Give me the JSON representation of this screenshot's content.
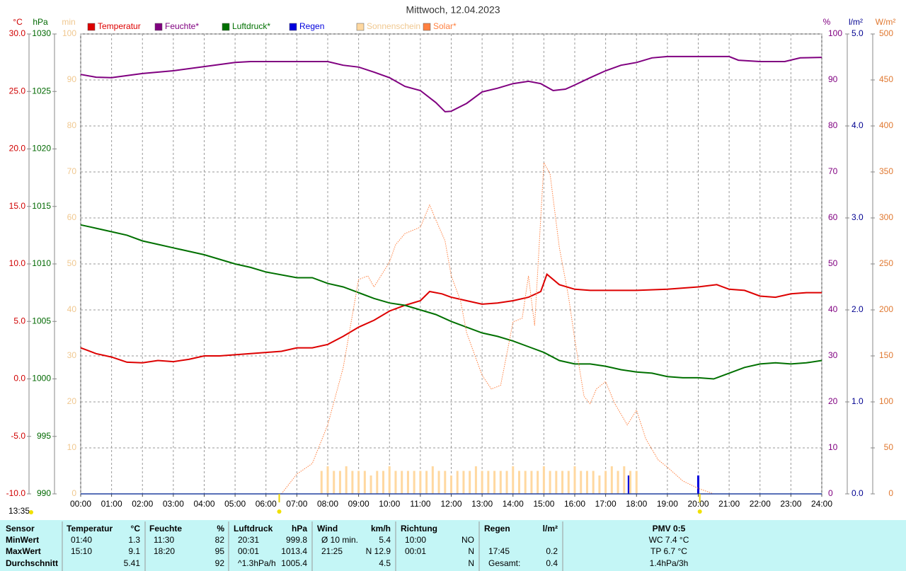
{
  "chart_data": {
    "type": "line",
    "title": "Mittwoch, 12.04.2023",
    "xlim": [
      0,
      24
    ],
    "xticks": [
      {
        "value": 0,
        "label": "00:00"
      },
      {
        "value": 1,
        "label": "01:00"
      },
      {
        "value": 2,
        "label": "02:00"
      },
      {
        "value": 3,
        "label": "03:00"
      },
      {
        "value": 4,
        "label": "04:00"
      },
      {
        "value": 5,
        "label": "05:00"
      },
      {
        "value": 6,
        "label": "06:00"
      },
      {
        "value": 7,
        "label": "07:00"
      },
      {
        "value": 8,
        "label": "08:00"
      },
      {
        "value": 9,
        "label": "09:00"
      },
      {
        "value": 10,
        "label": "10:00"
      },
      {
        "value": 11,
        "label": "11:00"
      },
      {
        "value": 12,
        "label": "12:00"
      },
      {
        "value": 13,
        "label": "13:00"
      },
      {
        "value": 14,
        "label": "14:00"
      },
      {
        "value": 15,
        "label": "15:00"
      },
      {
        "value": 16,
        "label": "16:00"
      },
      {
        "value": 17,
        "label": "17:00"
      },
      {
        "value": 18,
        "label": "18:00"
      },
      {
        "value": 19,
        "label": "19:00"
      },
      {
        "value": 20,
        "label": "20:00"
      },
      {
        "value": 21,
        "label": "21:00"
      },
      {
        "value": 22,
        "label": "22:00"
      },
      {
        "value": 23,
        "label": "23:00"
      },
      {
        "value": 24,
        "label": "24:00"
      }
    ],
    "grid": true,
    "axes": [
      {
        "unit": "°C",
        "color": "#d00000",
        "lim": [
          -10,
          30
        ],
        "ticks": [
          {
            "value": 30,
            "label": "30.0"
          },
          {
            "value": 25,
            "label": "25.0"
          },
          {
            "value": 20,
            "label": "20.0"
          },
          {
            "value": 15,
            "label": "15.0"
          },
          {
            "value": 10,
            "label": "10.0"
          },
          {
            "value": 5,
            "label": "5.0"
          },
          {
            "value": 0,
            "label": "0.0"
          },
          {
            "value": -5,
            "label": "-5.0"
          },
          {
            "value": -10,
            "label": "-10.0"
          }
        ]
      },
      {
        "unit": "hPa",
        "color": "#006800",
        "lim": [
          990,
          1030
        ],
        "ticks": [
          1030,
          1025,
          1020,
          1015,
          1010,
          1005,
          1000,
          995,
          990
        ]
      },
      {
        "unit": "min",
        "color": "#f0c890",
        "lim": [
          0,
          100
        ],
        "ticks": [
          100,
          90,
          80,
          70,
          60,
          50,
          40,
          30,
          20,
          10,
          0
        ]
      },
      {
        "unit": "%",
        "color": "#800080",
        "lim": [
          0,
          100
        ],
        "ticks": [
          100,
          90,
          80,
          70,
          60,
          50,
          40,
          30,
          20,
          10,
          0
        ]
      },
      {
        "unit": "l/m²",
        "color": "#000090",
        "lim": [
          0,
          5
        ],
        "ticks": [
          {
            "value": 5,
            "label": "5.0"
          },
          {
            "value": 4,
            "label": "4.0"
          },
          {
            "value": 3,
            "label": "3.0"
          },
          {
            "value": 2,
            "label": "2.0"
          },
          {
            "value": 1,
            "label": "1.0"
          },
          {
            "value": 0,
            "label": "0.0"
          }
        ]
      },
      {
        "unit": "W/m²",
        "color": "#e07830",
        "lim": [
          0,
          500
        ],
        "ticks": [
          500,
          450,
          400,
          350,
          300,
          250,
          200,
          150,
          100,
          50,
          0
        ]
      }
    ],
    "series": [
      {
        "name": "Temperatur",
        "color": "#dd0000",
        "style": "line",
        "axis": 0,
        "x": [
          0,
          0.5,
          1,
          1.5,
          2,
          2.5,
          3,
          3.5,
          4,
          4.5,
          5,
          5.5,
          6,
          6.5,
          7,
          7.5,
          8,
          8.5,
          9,
          9.5,
          10,
          10.5,
          11,
          11.3,
          11.7,
          12,
          12.5,
          13,
          13.5,
          14,
          14.5,
          14.9,
          15.1,
          15.5,
          16,
          16.5,
          17,
          18,
          19,
          19.5,
          20,
          20.6,
          21,
          21.5,
          22,
          22.5,
          23,
          23.5,
          24
        ],
        "values": [
          2.7,
          2.2,
          1.9,
          1.45,
          1.4,
          1.6,
          1.5,
          1.7,
          2.0,
          2.0,
          2.1,
          2.2,
          2.3,
          2.4,
          2.7,
          2.7,
          3.0,
          3.7,
          4.5,
          5.1,
          5.9,
          6.4,
          6.8,
          7.6,
          7.4,
          7.1,
          6.8,
          6.5,
          6.6,
          6.8,
          7.1,
          7.6,
          9.1,
          8.2,
          7.8,
          7.7,
          7.7,
          7.7,
          7.8,
          7.9,
          8.0,
          8.2,
          7.8,
          7.7,
          7.2,
          7.1,
          7.4,
          7.5,
          7.5
        ]
      },
      {
        "name": "Feuchte*",
        "color": "#800080",
        "style": "line",
        "axis": 3,
        "x": [
          0,
          0.5,
          1,
          2,
          3,
          4,
          5,
          5.5,
          7,
          8,
          8.5,
          9,
          9.5,
          10,
          10.5,
          11,
          11.5,
          11.8,
          12,
          12.5,
          13,
          13.5,
          14,
          14.5,
          14.9,
          15.3,
          15.7,
          16,
          16.5,
          17,
          17.5,
          18,
          18.5,
          19,
          20,
          21,
          21.3,
          22,
          22.8,
          23.3,
          24
        ],
        "values": [
          91.2,
          90.6,
          90.5,
          91.4,
          92,
          92.9,
          93.8,
          94,
          94,
          94,
          93.2,
          92.8,
          91.7,
          90.5,
          88.6,
          87.7,
          85.1,
          83.1,
          83.2,
          84.9,
          87.4,
          88.2,
          89.2,
          89.7,
          89.2,
          87.7,
          88,
          88.9,
          90.5,
          92,
          93.2,
          93.8,
          94.8,
          95.1,
          95.1,
          95.1,
          94.3,
          94,
          94,
          94.8,
          94.9
        ]
      },
      {
        "name": "Luftdruck*",
        "color": "#007000",
        "style": "line",
        "axis": 1,
        "x": [
          0,
          0.5,
          1,
          1.5,
          2,
          2.5,
          3,
          4,
          5,
          5.5,
          6,
          7,
          7.5,
          8,
          8.5,
          9,
          9.5,
          10,
          10.5,
          11,
          11.5,
          12,
          12.5,
          13,
          13.5,
          14,
          14.5,
          15,
          15.5,
          16,
          16.5,
          17,
          17.5,
          18,
          18.5,
          19,
          19.5,
          20,
          20.5,
          21,
          21.5,
          22,
          22.5,
          23,
          23.5,
          24
        ],
        "values": [
          1013.4,
          1013.1,
          1012.8,
          1012.5,
          1012.0,
          1011.7,
          1011.4,
          1010.8,
          1010.0,
          1009.7,
          1009.3,
          1008.8,
          1008.8,
          1008.3,
          1008.0,
          1007.5,
          1007.0,
          1006.6,
          1006.4,
          1006.0,
          1005.6,
          1005.0,
          1004.5,
          1004.0,
          1003.7,
          1003.3,
          1002.8,
          1002.3,
          1001.6,
          1001.3,
          1001.3,
          1001.1,
          1000.8,
          1000.6,
          1000.5,
          1000.2,
          1000.1,
          1000.1,
          1000.0,
          1000.5,
          1001.0,
          1001.3,
          1001.4,
          1001.3,
          1001.4,
          1001.6
        ]
      },
      {
        "name": "Regen",
        "color": "#0000dd",
        "style": "bars",
        "axis": 4,
        "x": [
          17.75,
          20.0
        ],
        "values": [
          0.2,
          0.2
        ]
      },
      {
        "name": "Sonnenschein",
        "color": "#ffd8a0",
        "style": "bars",
        "axis": 2,
        "x": [
          7.8,
          8,
          8.2,
          8.4,
          8.6,
          8.8,
          9,
          9.2,
          9.4,
          9.6,
          9.8,
          10,
          10.2,
          10.4,
          10.6,
          10.8,
          11,
          11.2,
          11.4,
          11.6,
          11.8,
          12,
          12.2,
          12.4,
          12.6,
          12.8,
          13,
          13.2,
          13.4,
          13.6,
          13.8,
          14,
          14.2,
          14.4,
          14.6,
          14.8,
          15,
          15.2,
          15.4,
          15.6,
          15.8,
          16,
          16.2,
          16.4,
          16.6,
          16.8,
          17,
          17.2,
          17.4,
          17.6,
          17.8,
          18
        ],
        "values": [
          5,
          6,
          5,
          5,
          6,
          5,
          5,
          5,
          4,
          5,
          5,
          6,
          5,
          5,
          5,
          5,
          5,
          5,
          6,
          5,
          5,
          4,
          5,
          5,
          5,
          6,
          5,
          5,
          5,
          5,
          5,
          6,
          5,
          5,
          5,
          5,
          6,
          5,
          5,
          5,
          5,
          6,
          5,
          5,
          5,
          4,
          5,
          6,
          5,
          6,
          5,
          5
        ]
      },
      {
        "name": "Solar*",
        "color": "#ff8040",
        "style": "dotted",
        "axis": 5,
        "x": [
          6.5,
          7,
          7.5,
          8,
          8.5,
          9,
          9.3,
          9.5,
          10,
          10.2,
          10.5,
          11,
          11.3,
          11.5,
          11.8,
          12,
          12.3,
          12.5,
          13,
          13.3,
          13.6,
          13.8,
          14,
          14.3,
          14.5,
          14.7,
          15,
          15.2,
          15.5,
          15.8,
          16,
          16.3,
          16.5,
          16.7,
          17,
          17.3,
          17.7,
          18,
          18.3,
          18.7,
          19,
          19.5,
          20,
          20.5
        ],
        "values": [
          0,
          21.5,
          33,
          75,
          137,
          233,
          237,
          225,
          252,
          271,
          283,
          290,
          314,
          298,
          275,
          237,
          210,
          175,
          129,
          114,
          118,
          152,
          187,
          191,
          237,
          183,
          360,
          348,
          268,
          214,
          168,
          106,
          98,
          114,
          122,
          98,
          75,
          91,
          60,
          37,
          29,
          14,
          6,
          0
        ]
      }
    ],
    "sun_markers": [
      6.43,
      20.05
    ]
  },
  "timestamp": "13:35",
  "table": {
    "corner": "Sensor",
    "row_labels": [
      "MinWert",
      "MaxWert",
      "Durchschnitt"
    ],
    "columns": [
      {
        "title": "Temperatur",
        "unit": "°C",
        "cells": [
          [
            "01:40",
            "1.3"
          ],
          [
            "15:10",
            "9.1"
          ],
          [
            "5.41"
          ]
        ]
      },
      {
        "title": "Feuchte",
        "unit": "%",
        "cells": [
          [
            "11:30",
            "82"
          ],
          [
            "18:20",
            "95"
          ],
          [
            "92"
          ]
        ]
      },
      {
        "title": "Luftdruck",
        "unit": "hPa",
        "cells": [
          [
            "20:31",
            "999.8"
          ],
          [
            "00:01",
            "1013.4"
          ],
          [
            "^1.3hPa/h",
            "1005.4"
          ]
        ]
      },
      {
        "title": "Wind",
        "unit": "km/h",
        "cells": [
          [
            "Ø 10 min.",
            "5.4"
          ],
          [
            "21:25",
            "N 12.9"
          ],
          [
            "4.5"
          ]
        ]
      },
      {
        "title": "Richtung",
        "cells": [
          [
            "10:00",
            "NO"
          ],
          [
            "00:01",
            "N"
          ],
          [
            "N"
          ]
        ]
      },
      {
        "title": "Regen",
        "unit": "l/m²",
        "cells": [
          [],
          [
            "17:45",
            "0.2"
          ],
          [
            "Gesamt:",
            "0.4"
          ]
        ]
      },
      {
        "title": "PMV 0:5",
        "cells": [
          [
            "WC 7.4 °C"
          ],
          [
            "TP 6.7 °C"
          ],
          [
            "1.4hPa/3h"
          ]
        ]
      }
    ]
  }
}
